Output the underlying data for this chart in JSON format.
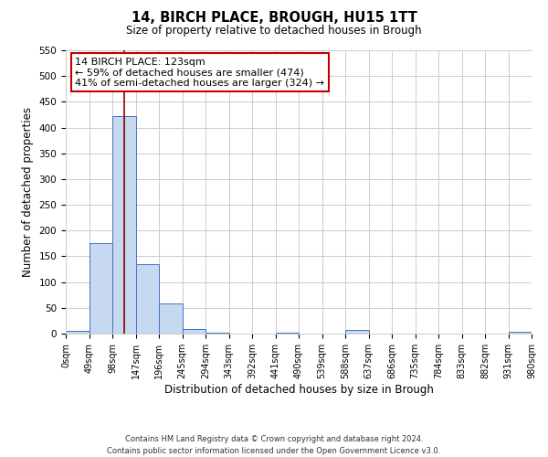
{
  "title": "14, BIRCH PLACE, BROUGH, HU15 1TT",
  "subtitle": "Size of property relative to detached houses in Brough",
  "xlabel": "Distribution of detached houses by size in Brough",
  "ylabel": "Number of detached properties",
  "bar_edges": [
    0,
    49,
    98,
    147,
    196,
    245,
    294,
    343,
    392,
    441,
    490,
    539,
    588,
    637,
    686,
    735,
    784,
    833,
    882,
    931,
    980
  ],
  "bar_heights": [
    5,
    175,
    422,
    135,
    58,
    8,
    2,
    0,
    0,
    2,
    0,
    0,
    7,
    0,
    0,
    0,
    0,
    0,
    0,
    3
  ],
  "bar_color": "#c6d9f0",
  "bar_edge_color": "#4472c4",
  "ylim": [
    0,
    550
  ],
  "yticks": [
    0,
    50,
    100,
    150,
    200,
    250,
    300,
    350,
    400,
    450,
    500,
    550
  ],
  "xtick_labels": [
    "0sqm",
    "49sqm",
    "98sqm",
    "147sqm",
    "196sqm",
    "245sqm",
    "294sqm",
    "343sqm",
    "392sqm",
    "441sqm",
    "490sqm",
    "539sqm",
    "588sqm",
    "637sqm",
    "686sqm",
    "735sqm",
    "784sqm",
    "833sqm",
    "882sqm",
    "931sqm",
    "980sqm"
  ],
  "property_size": 123,
  "vline_color": "#8b0000",
  "annotation_text": "14 BIRCH PLACE: 123sqm\n← 59% of detached houses are smaller (474)\n41% of semi-detached houses are larger (324) →",
  "annotation_box_color": "#ffffff",
  "annotation_box_edge_color": "#c00000",
  "footer_line1": "Contains HM Land Registry data © Crown copyright and database right 2024.",
  "footer_line2": "Contains public sector information licensed under the Open Government Licence v3.0.",
  "background_color": "#ffffff",
  "grid_color": "#cccccc"
}
